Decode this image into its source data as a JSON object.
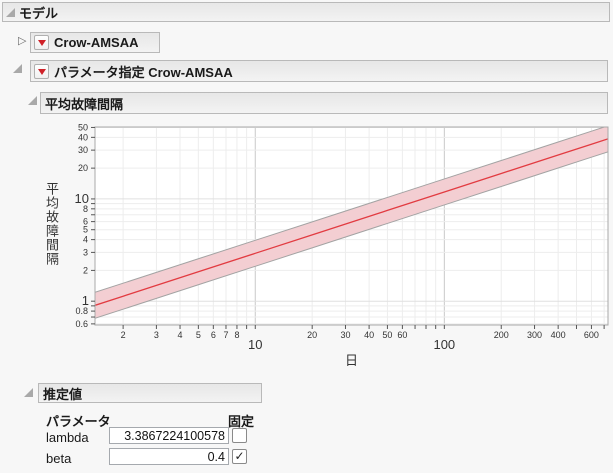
{
  "icons": {
    "disclosure_collapsed": "▷",
    "check": "✓"
  },
  "outline": {
    "model": "モデル",
    "crow_amsaa": "Crow-AMSAA",
    "param_spec": "パラメータ指定 Crow-AMSAA",
    "mtbf": "平均故障間隔",
    "estimates": "推定値"
  },
  "chart_data": {
    "type": "line",
    "title": "平均故障間隔",
    "xlabel": "日",
    "ylabel": "平均故障間隔",
    "x_scale": "log",
    "y_scale": "log",
    "xlim": [
      1.42,
      734
    ],
    "ylim": [
      0.585,
      50.5
    ],
    "grid": true,
    "legend": "none",
    "x_major_ticks": [
      10,
      100
    ],
    "x_minor_ticks_labeled": [
      2,
      3,
      4,
      5,
      6,
      7,
      8,
      20,
      30,
      40,
      50,
      60,
      200,
      300,
      400,
      600
    ],
    "x_unlabeled_ticks": [
      9,
      70,
      80,
      90,
      500,
      700
    ],
    "y_major_ticks": [
      1,
      10
    ],
    "y_minor_ticks_labeled": [
      50,
      40,
      30,
      20,
      8,
      6,
      5,
      4,
      3,
      2,
      0.8,
      0.6
    ],
    "y_unlabeled_ticks": [
      9,
      7,
      0.9,
      0.7
    ],
    "x": [
      1.42,
      2,
      3,
      5,
      10,
      20,
      50,
      100,
      200,
      400,
      600,
      734
    ],
    "series": [
      {
        "name": "estimate",
        "values": [
          0.911,
          1.119,
          1.427,
          1.939,
          2.939,
          4.454,
          7.719,
          11.699,
          17.733,
          26.878,
          34.286,
          38.703
        ]
      },
      {
        "name": "upper",
        "values": [
          1.221,
          1.499,
          1.912,
          2.598,
          3.938,
          5.969,
          10.343,
          15.677,
          23.762,
          36.016,
          45.944,
          51.862
        ]
      },
      {
        "name": "lower",
        "values": [
          0.68,
          0.835,
          1.065,
          1.447,
          2.193,
          3.324,
          5.76,
          8.731,
          13.233,
          20.058,
          25.587,
          28.883
        ]
      }
    ],
    "colors": {
      "line": "#e23b41",
      "band_fill": "#f3ced2",
      "band_edge": "#a3a3a3",
      "grid_minor": "#ededed",
      "grid_major_x": "#c9c9c9",
      "grid_major_y": "#e0e0e0",
      "frame": "#a8a8a8",
      "tick": "#555555",
      "label": "#333333",
      "plot_bg": "#ffffff"
    }
  },
  "estimates": {
    "col_parameter": "パラメータ",
    "col_fixed": "固定",
    "rows": [
      {
        "name": "lambda",
        "value": "3.3867224100578",
        "fixed": false
      },
      {
        "name": "beta",
        "value": "0.4",
        "fixed": true
      }
    ]
  }
}
